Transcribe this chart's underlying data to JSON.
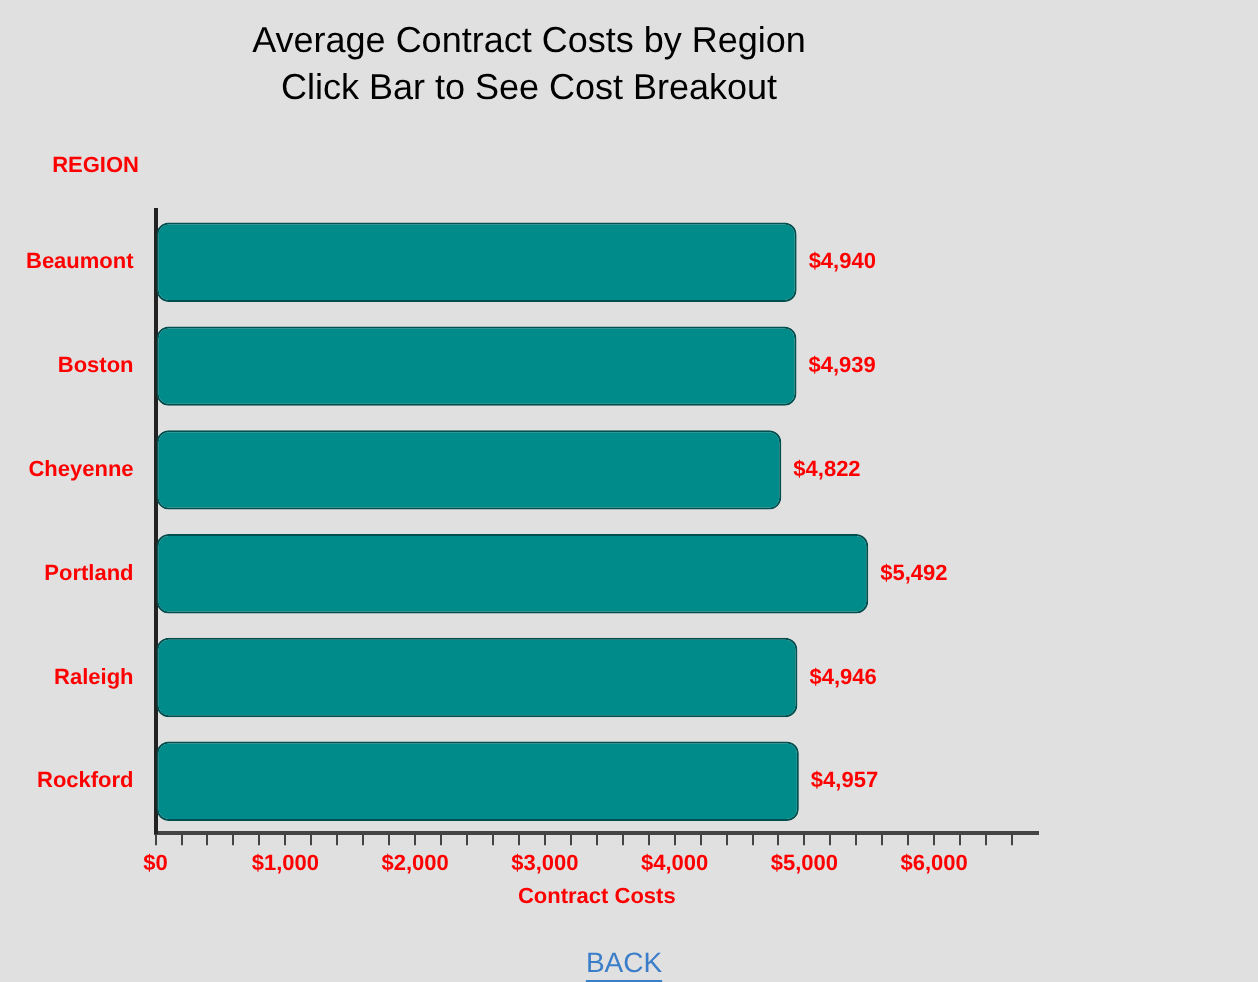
{
  "chart_data": {
    "type": "bar",
    "orientation": "horizontal",
    "title": "Average Contract Costs by Region",
    "subtitle": "Click Bar to See Cost Breakout",
    "ylabel": "REGION",
    "xlabel": "Contract Costs",
    "categories": [
      "Beaumont",
      "Boston",
      "Cheyenne",
      "Portland",
      "Raleigh",
      "Rockford"
    ],
    "values": [
      4940,
      4939,
      4822,
      5492,
      4946,
      4957
    ],
    "value_labels": [
      "$4,940",
      "$4,939",
      "$4,822",
      "$5,492",
      "$4,946",
      "$4,957"
    ],
    "color": "#008b8b",
    "xlim": [
      0,
      6800
    ],
    "xticks": [
      {
        "value": 0,
        "label": "$0"
      },
      {
        "value": 200,
        "label": null
      },
      {
        "value": 400,
        "label": null
      },
      {
        "value": 600,
        "label": null
      },
      {
        "value": 800,
        "label": null
      },
      {
        "value": 1000,
        "label": "$1,000"
      },
      {
        "value": 1200,
        "label": null
      },
      {
        "value": 1400,
        "label": null
      },
      {
        "value": 1600,
        "label": null
      },
      {
        "value": 1800,
        "label": null
      },
      {
        "value": 2000,
        "label": "$2,000"
      },
      {
        "value": 2200,
        "label": null
      },
      {
        "value": 2400,
        "label": null
      },
      {
        "value": 2600,
        "label": null
      },
      {
        "value": 2800,
        "label": null
      },
      {
        "value": 3000,
        "label": "$3,000"
      },
      {
        "value": 3200,
        "label": null
      },
      {
        "value": 3400,
        "label": null
      },
      {
        "value": 3600,
        "label": null
      },
      {
        "value": 3800,
        "label": null
      },
      {
        "value": 4000,
        "label": "$4,000"
      },
      {
        "value": 4200,
        "label": null
      },
      {
        "value": 4400,
        "label": null
      },
      {
        "value": 4600,
        "label": null
      },
      {
        "value": 4800,
        "label": null
      },
      {
        "value": 5000,
        "label": "$5,000"
      },
      {
        "value": 5200,
        "label": null
      },
      {
        "value": 5400,
        "label": null
      },
      {
        "value": 5600,
        "label": null
      },
      {
        "value": 5800,
        "label": null
      },
      {
        "value": 6000,
        "label": "$6,000"
      },
      {
        "value": 6200,
        "label": null
      },
      {
        "value": 6400,
        "label": null
      },
      {
        "value": 6600,
        "label": null
      }
    ],
    "grid": false,
    "legend": false,
    "annotations": [
      "BACK"
    ]
  }
}
